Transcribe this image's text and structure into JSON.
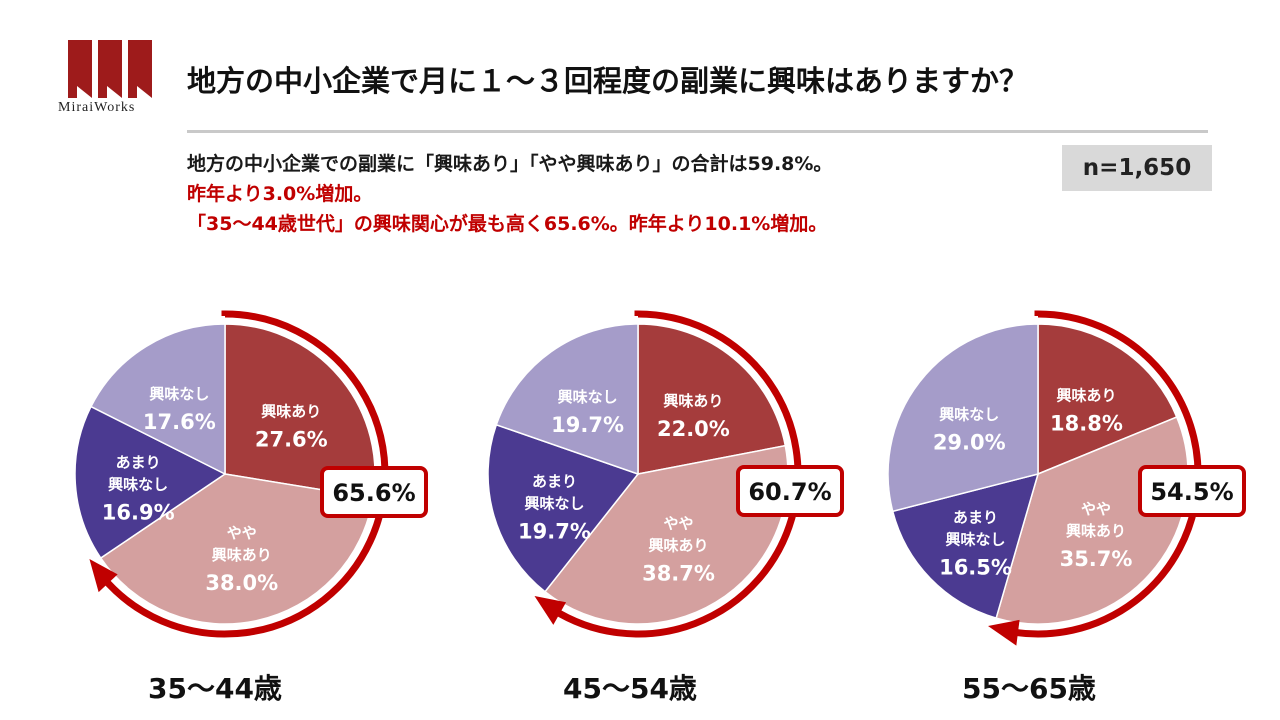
{
  "logo": {
    "text": "MiraiWorks"
  },
  "title": "地方の中小企業で月に１～３回程度の副業に興味はありますか？",
  "summary": {
    "line1": "地方の中小企業での副業に「興味あり」「やや興味あり」の合計は59.8%。",
    "line2": "昨年より3.0%増加。",
    "line3": "「35～44歳世代」の興味関心が最も高く65.6%。昨年より10.1%増加。"
  },
  "sample_size": "n=1,650",
  "colors": {
    "interested": "#a53c3c",
    "somewhat_interested": "#d4a09f",
    "not_very_interested": "#4b3a91",
    "not_interested": "#a59cc9",
    "accent": "#c00000"
  },
  "chart_data": [
    {
      "type": "pie",
      "age_group": "35～44歳",
      "total_label": "65.6%",
      "slices": [
        {
          "name": "興味あり",
          "value": 27.6,
          "label": "27.6%"
        },
        {
          "name": "やや興味あり",
          "value": 38.0,
          "label": "38.0%"
        },
        {
          "name": "あまり興味なし",
          "value": 16.9,
          "label": "16.9%"
        },
        {
          "name": "興味なし",
          "value": 17.6,
          "label": "17.6%"
        }
      ]
    },
    {
      "type": "pie",
      "age_group": "45～54歳",
      "total_label": "60.7%",
      "slices": [
        {
          "name": "興味あり",
          "value": 22.0,
          "label": "22.0%"
        },
        {
          "name": "やや興味あり",
          "value": 38.7,
          "label": "38.7%"
        },
        {
          "name": "あまり興味なし",
          "value": 19.7,
          "label": "19.7%"
        },
        {
          "name": "興味なし",
          "value": 19.7,
          "label": "19.7%"
        }
      ]
    },
    {
      "type": "pie",
      "age_group": "55～65歳",
      "total_label": "54.5%",
      "slices": [
        {
          "name": "興味あり",
          "value": 18.8,
          "label": "18.8%"
        },
        {
          "name": "やや興味あり",
          "value": 35.7,
          "label": "35.7%"
        },
        {
          "name": "あまり興味なし",
          "value": 16.5,
          "label": "16.5%"
        },
        {
          "name": "興味なし",
          "value": 29.0,
          "label": "29.0%"
        }
      ]
    }
  ]
}
